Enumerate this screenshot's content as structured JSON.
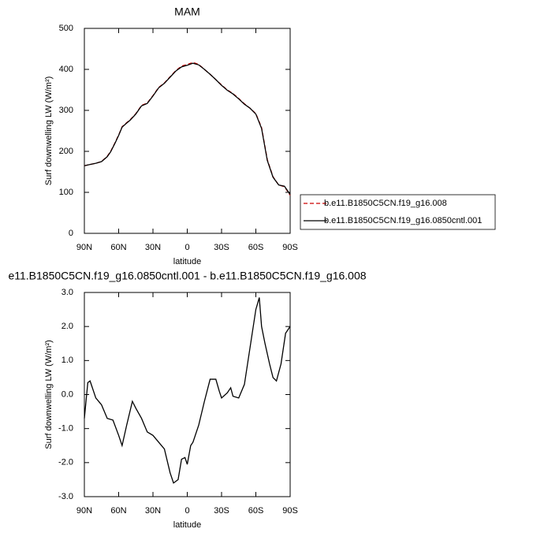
{
  "chart_data": [
    {
      "type": "line",
      "title": "MAM",
      "xlabel": "latitude",
      "ylabel": "Surf downwelling LW (W/m²)",
      "x": [
        90,
        85,
        80,
        75,
        70,
        67,
        63,
        60,
        57,
        53,
        50,
        45,
        40,
        35,
        30,
        25,
        20,
        15,
        10,
        5,
        0,
        -5,
        -10,
        -15,
        -20,
        -25,
        -30,
        -35,
        -40,
        -45,
        -50,
        -55,
        -60,
        -65,
        -70,
        -75,
        -80,
        -85,
        -90
      ],
      "xlim": [
        90,
        -90
      ],
      "xticks": [
        {
          "value": 90,
          "label": "90N"
        },
        {
          "value": 60,
          "label": "60N"
        },
        {
          "value": 30,
          "label": "30N"
        },
        0,
        {
          "value": -30,
          "label": "30S"
        },
        {
          "value": -60,
          "label": "60S"
        },
        {
          "value": -90,
          "label": "90S"
        }
      ],
      "ylim": [
        0,
        500
      ],
      "yticks": [
        0,
        100,
        200,
        300,
        400,
        500
      ],
      "legend": "right",
      "series": [
        {
          "name": "b.e11.B1850C5CN.f19_g16.008",
          "color": "#cc0000",
          "linestyle": "dashed",
          "values": [
            165,
            168,
            171,
            175,
            188,
            200,
            222,
            240,
            260,
            270,
            277,
            292,
            312,
            318,
            336,
            356,
            367,
            382,
            397,
            408,
            412,
            417,
            412,
            400,
            388,
            375,
            362,
            350,
            341,
            329,
            316,
            305,
            292,
            258,
            180,
            138,
            118,
            114,
            93
          ]
        },
        {
          "name": "b.e11.B1850C5CN.f19_g16.0850cntl.001",
          "color": "#000000",
          "linestyle": "solid",
          "values": [
            165,
            168,
            171,
            175,
            187,
            199,
            221,
            239,
            259,
            269,
            276,
            291,
            311,
            317,
            335,
            355,
            366,
            381,
            396,
            406,
            410,
            415,
            411,
            400,
            388,
            375,
            361,
            349,
            340,
            328,
            315,
            305,
            291,
            256,
            178,
            137,
            118,
            115,
            95
          ]
        }
      ]
    },
    {
      "type": "line",
      "title": "e11.B1850C5CN.f19_g16.0850cntl.001 - b.e11.B1850C5CN.f19_g16.008",
      "xlabel": "latitude",
      "ylabel": "Surf downwelling LW (W/m²)",
      "x": [
        90,
        87,
        85,
        80,
        75,
        70,
        65,
        60,
        57,
        53,
        48,
        45,
        40,
        35,
        30,
        25,
        20,
        15,
        12,
        8,
        5,
        2,
        0,
        -3,
        -5,
        -10,
        -15,
        -20,
        -25,
        -28,
        -30,
        -35,
        -38,
        -40,
        -45,
        -50,
        -55,
        -60,
        -63,
        -65,
        -68,
        -72,
        -75,
        -78,
        -82,
        -86,
        -90
      ],
      "xlim": [
        90,
        -90
      ],
      "xticks": [
        {
          "value": 90,
          "label": "90N"
        },
        {
          "value": 60,
          "label": "60N"
        },
        {
          "value": 30,
          "label": "30N"
        },
        0,
        {
          "value": -30,
          "label": "30S"
        },
        {
          "value": -60,
          "label": "60S"
        },
        {
          "value": -90,
          "label": "90S"
        }
      ],
      "ylim": [
        -3,
        3
      ],
      "yticks": [
        {
          "value": -3,
          "label": "-3.0"
        },
        {
          "value": -2,
          "label": "-2.0"
        },
        {
          "value": -1,
          "label": "-1.0"
        },
        {
          "value": 0,
          "label": "0.0"
        },
        {
          "value": 1,
          "label": "1.0"
        },
        {
          "value": 2,
          "label": "2.0"
        },
        {
          "value": 3,
          "label": "3.0"
        }
      ],
      "color": "#000000",
      "values": [
        -0.7,
        0.35,
        0.4,
        -0.1,
        -0.3,
        -0.7,
        -0.75,
        -1.2,
        -1.5,
        -0.9,
        -0.2,
        -0.4,
        -0.7,
        -1.1,
        -1.2,
        -1.4,
        -1.6,
        -2.3,
        -2.6,
        -2.5,
        -1.9,
        -1.85,
        -2.05,
        -1.5,
        -1.4,
        -0.9,
        -0.2,
        0.45,
        0.45,
        0.1,
        -0.1,
        0.05,
        0.2,
        -0.05,
        -0.1,
        0.3,
        1.4,
        2.5,
        2.85,
        2.0,
        1.5,
        0.9,
        0.5,
        0.4,
        0.9,
        1.8,
        2.0
      ]
    }
  ]
}
